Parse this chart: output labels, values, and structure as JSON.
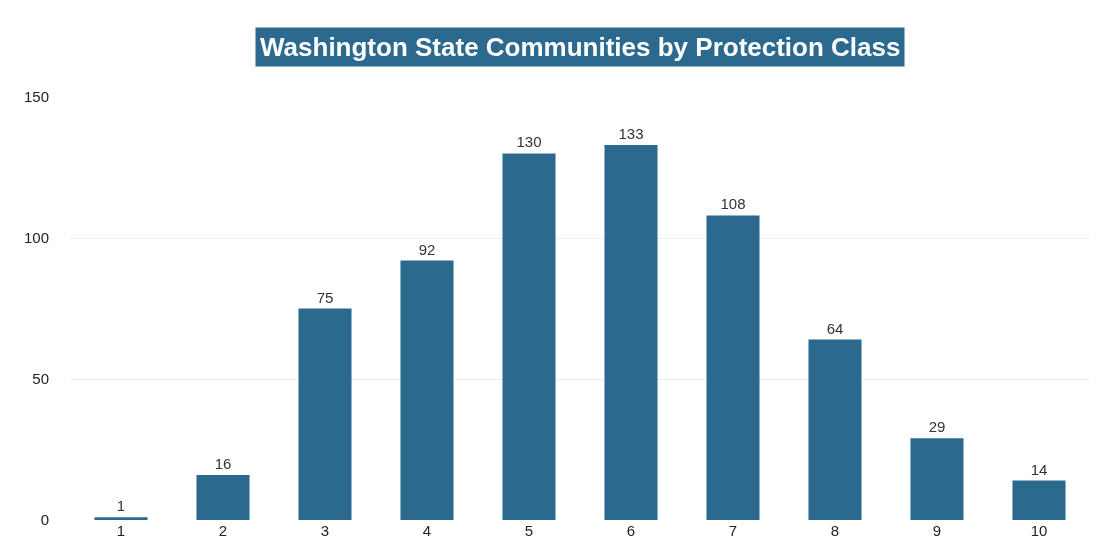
{
  "chart_data": {
    "type": "bar",
    "title": "Washington State Communities by Protection Class",
    "categories": [
      "1",
      "2",
      "3",
      "4",
      "5",
      "6",
      "7",
      "8",
      "9",
      "10"
    ],
    "values": [
      1,
      16,
      75,
      92,
      130,
      133,
      108,
      64,
      29,
      14
    ],
    "color": "#2b6a8e",
    "ylim": [
      0,
      150
    ],
    "yticks": [
      0,
      50,
      100,
      150
    ],
    "grid": "y",
    "data_labels": true,
    "legend": false
  }
}
